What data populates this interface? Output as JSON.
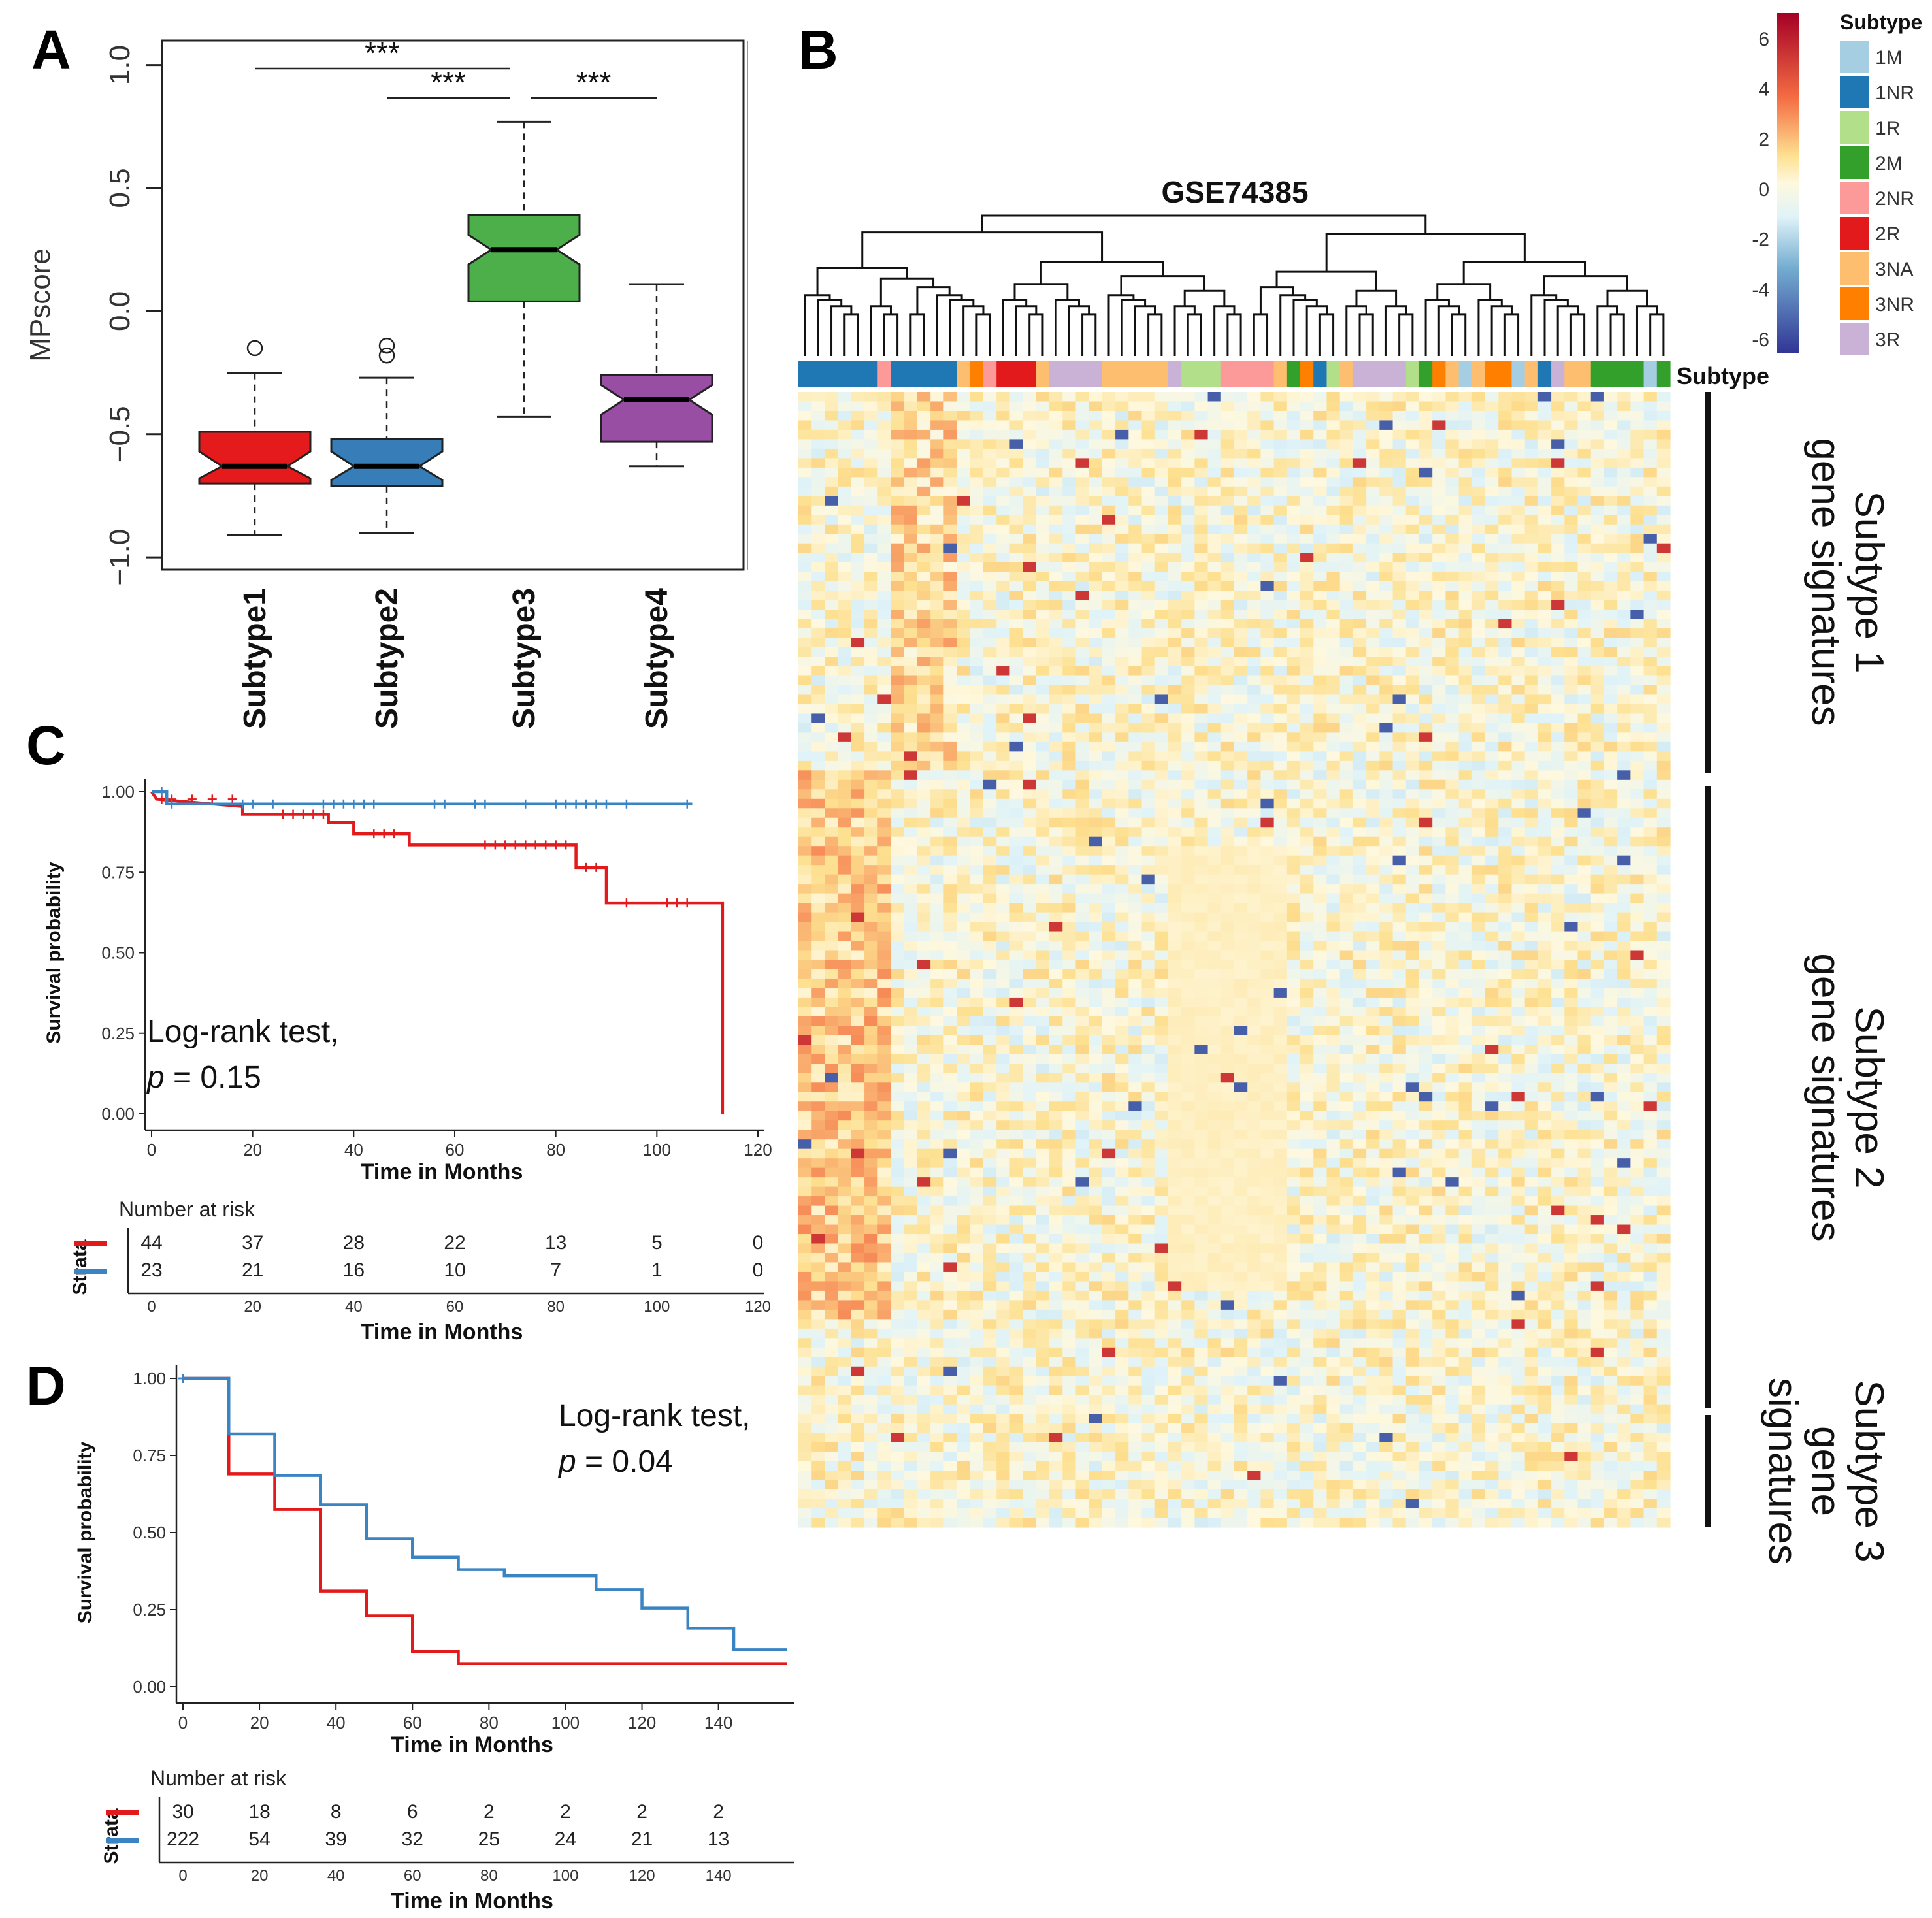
{
  "panels": {
    "A": "A",
    "B": "B",
    "C": "C",
    "D": "D"
  },
  "colors": {
    "red": "#e41a1c",
    "blue": "#377eb8",
    "green": "#4daf4a",
    "purple": "#984ea3",
    "km_red": "#e31a1c",
    "km_blue": "#3a84c4"
  },
  "chart_data": [
    {
      "id": "A",
      "type": "box",
      "ylabel": "MPscore",
      "ylim": [
        -1.05,
        1.1
      ],
      "yticks": [
        "1.0",
        "0.5",
        "0.0",
        "−0.5",
        "−1.0"
      ],
      "categories": [
        "Subtype1",
        "Subtype2",
        "Subtype3",
        "Subtype4"
      ],
      "boxes": [
        {
          "name": "Subtype1",
          "min": -0.91,
          "q1": -0.7,
          "median": -0.63,
          "q3": -0.49,
          "max": -0.25,
          "outliers": [
            -0.15
          ],
          "color": "#e41a1c"
        },
        {
          "name": "Subtype2",
          "min": -0.9,
          "q1": -0.71,
          "median": -0.63,
          "q3": -0.52,
          "max": -0.27,
          "outliers": [
            -0.14,
            -0.18
          ],
          "color": "#377eb8"
        },
        {
          "name": "Subtype3",
          "min": -0.43,
          "q1": 0.04,
          "median": 0.25,
          "q3": 0.39,
          "max": 0.77,
          "outliers": [],
          "color": "#4daf4a"
        },
        {
          "name": "Subtype4",
          "min": -0.63,
          "q1": -0.53,
          "median": -0.36,
          "q3": -0.26,
          "max": 0.11,
          "outliers": [],
          "color": "#984ea3"
        }
      ],
      "significance": [
        {
          "from": 0,
          "to": 2,
          "label": "***"
        },
        {
          "from": 1,
          "to": 2,
          "label": "***"
        },
        {
          "from": 2,
          "to": 3,
          "label": "***"
        }
      ]
    },
    {
      "id": "B",
      "type": "heatmap",
      "title": "GSE74385",
      "annotation_label": "Subtype",
      "colorbar_ticks": [
        "6",
        "4",
        "2",
        "0",
        "-2",
        "-4",
        "-6"
      ],
      "legend_title": "Subtype",
      "legend": [
        {
          "label": "1M",
          "color": "#a6cee3"
        },
        {
          "label": "1NR",
          "color": "#1f78b4"
        },
        {
          "label": "1R",
          "color": "#b2df8a"
        },
        {
          "label": "2M",
          "color": "#33a02c"
        },
        {
          "label": "2NR",
          "color": "#fb9a99"
        },
        {
          "label": "2R",
          "color": "#e31a1c"
        },
        {
          "label": "3NA",
          "color": "#fdbf6f"
        },
        {
          "label": "3NR",
          "color": "#ff7f00"
        },
        {
          "label": "3R",
          "color": "#cab2d6"
        }
      ],
      "sample_subtypes": [
        "1NR",
        "1NR",
        "1NR",
        "1NR",
        "1NR",
        "1NR",
        "2NR",
        "1NR",
        "1NR",
        "1NR",
        "1NR",
        "1NR",
        "3NA",
        "3NR",
        "2NR",
        "2R",
        "2R",
        "2R",
        "3NA",
        "3R",
        "3R",
        "3R",
        "3R",
        "3NA",
        "3NA",
        "3NA",
        "3NA",
        "3NA",
        "3R",
        "1R",
        "1R",
        "1R",
        "2NR",
        "2NR",
        "2NR",
        "2NR",
        "3NA",
        "2M",
        "3NR",
        "1NR",
        "1R",
        "3NA",
        "3R",
        "3R",
        "3R",
        "3R",
        "1R",
        "2M",
        "3NR",
        "3NA",
        "1M",
        "3NA",
        "3NR",
        "3NR",
        "1M",
        "3NA",
        "1NR",
        "3R",
        "3NA",
        "3NA",
        "2M",
        "2M",
        "2M",
        "2M",
        "1M",
        "2M"
      ],
      "gene_groups": [
        "Subtype 1 gene signatures",
        "Subtype 2 gene signatures",
        "Subtype 3 gene signatures"
      ]
    },
    {
      "id": "C",
      "type": "line",
      "ylabel": "Survival probability",
      "xlabel": "Time in Months",
      "xlim": [
        0,
        120
      ],
      "ylim": [
        0,
        1.0
      ],
      "xticks": [
        "0",
        "20",
        "40",
        "60",
        "80",
        "100",
        "120"
      ],
      "yticks": [
        "1.00",
        "0.75",
        "0.50",
        "0.25",
        "0.00"
      ],
      "series": [
        {
          "name": "red",
          "color": "#e31a1c",
          "steps": [
            [
              0,
              1.0
            ],
            [
              1,
              0.977
            ],
            [
              18,
              0.954
            ],
            [
              18,
              0.93
            ],
            [
              35,
              0.93
            ],
            [
              35,
              0.905
            ],
            [
              40,
              0.905
            ],
            [
              40,
              0.87
            ],
            [
              51,
              0.87
            ],
            [
              51,
              0.835
            ],
            [
              84,
              0.835
            ],
            [
              84,
              0.765
            ],
            [
              90,
              0.765
            ],
            [
              90,
              0.655
            ],
            [
              113,
              0.655
            ],
            [
              113,
              0.0
            ]
          ],
          "censor": [
            2,
            4,
            8,
            12,
            16,
            26,
            28,
            30,
            32,
            34,
            44,
            46,
            48,
            66,
            68,
            70,
            72,
            74,
            76,
            78,
            80,
            82,
            86,
            88,
            94,
            102,
            104,
            106
          ]
        },
        {
          "name": "blue",
          "color": "#3a84c4",
          "steps": [
            [
              0,
              1.0
            ],
            [
              3,
              1.0
            ],
            [
              3,
              0.962
            ],
            [
              107,
              0.962
            ]
          ],
          "censor": [
            2,
            4,
            18,
            20,
            24,
            34,
            36,
            38,
            40,
            42,
            44,
            56,
            58,
            64,
            66,
            74,
            80,
            82,
            84,
            86,
            88,
            90,
            94,
            106
          ]
        }
      ],
      "annotation_line1": "Log-rank test,",
      "annotation_p_italic": "p",
      "annotation_p_value": " = 0.15",
      "risk_title": "Number at risk",
      "risk_strata_label": "Strata",
      "risk_times": [
        "0",
        "20",
        "40",
        "60",
        "80",
        "100",
        "120"
      ],
      "risk_rows": [
        {
          "series": "red",
          "values": [
            "44",
            "37",
            "28",
            "22",
            "13",
            "5",
            "0"
          ]
        },
        {
          "series": "blue",
          "values": [
            "23",
            "21",
            "16",
            "10",
            "7",
            "1",
            "0"
          ]
        }
      ]
    },
    {
      "id": "D",
      "type": "line",
      "ylabel": "Survival probability",
      "xlabel": "Time in Months",
      "xlim": [
        0,
        158
      ],
      "ylim": [
        0,
        1.0
      ],
      "xticks": [
        "0",
        "20",
        "40",
        "60",
        "80",
        "100",
        "120",
        "140"
      ],
      "yticks": [
        "1.00",
        "0.75",
        "0.50",
        "0.25",
        "0.00"
      ],
      "series": [
        {
          "name": "red",
          "color": "#e31a1c",
          "steps": [
            [
              0,
              1.0
            ],
            [
              12,
              1.0
            ],
            [
              12,
              0.69
            ],
            [
              24,
              0.69
            ],
            [
              24,
              0.575
            ],
            [
              36,
              0.575
            ],
            [
              36,
              0.31
            ],
            [
              48,
              0.31
            ],
            [
              48,
              0.23
            ],
            [
              60,
              0.23
            ],
            [
              60,
              0.115
            ],
            [
              72,
              0.115
            ],
            [
              72,
              0.075
            ],
            [
              158,
              0.075
            ]
          ],
          "censor": [
            0
          ]
        },
        {
          "name": "blue",
          "color": "#3a84c4",
          "steps": [
            [
              0,
              1.0
            ],
            [
              12,
              1.0
            ],
            [
              12,
              0.82
            ],
            [
              24,
              0.82
            ],
            [
              24,
              0.685
            ],
            [
              36,
              0.685
            ],
            [
              36,
              0.59
            ],
            [
              48,
              0.59
            ],
            [
              48,
              0.48
            ],
            [
              60,
              0.48
            ],
            [
              60,
              0.42
            ],
            [
              72,
              0.42
            ],
            [
              72,
              0.38
            ],
            [
              84,
              0.38
            ],
            [
              84,
              0.36
            ],
            [
              108,
              0.36
            ],
            [
              108,
              0.315
            ],
            [
              120,
              0.315
            ],
            [
              120,
              0.255
            ],
            [
              132,
              0.255
            ],
            [
              132,
              0.19
            ],
            [
              144,
              0.19
            ],
            [
              144,
              0.12
            ],
            [
              158,
              0.12
            ]
          ],
          "censor": [
            0
          ]
        }
      ],
      "annotation_line1": "Log-rank test,",
      "annotation_p_italic": "p",
      "annotation_p_value": " = 0.04",
      "risk_title": "Number at risk",
      "risk_strata_label": "Strata",
      "risk_times": [
        "0",
        "20",
        "40",
        "60",
        "80",
        "100",
        "120",
        "140"
      ],
      "risk_rows": [
        {
          "series": "red",
          "values": [
            "30",
            "18",
            "8",
            "6",
            "2",
            "2",
            "2",
            "2"
          ]
        },
        {
          "series": "blue",
          "values": [
            "222",
            "54",
            "39",
            "32",
            "25",
            "24",
            "21",
            "13"
          ]
        }
      ]
    }
  ]
}
